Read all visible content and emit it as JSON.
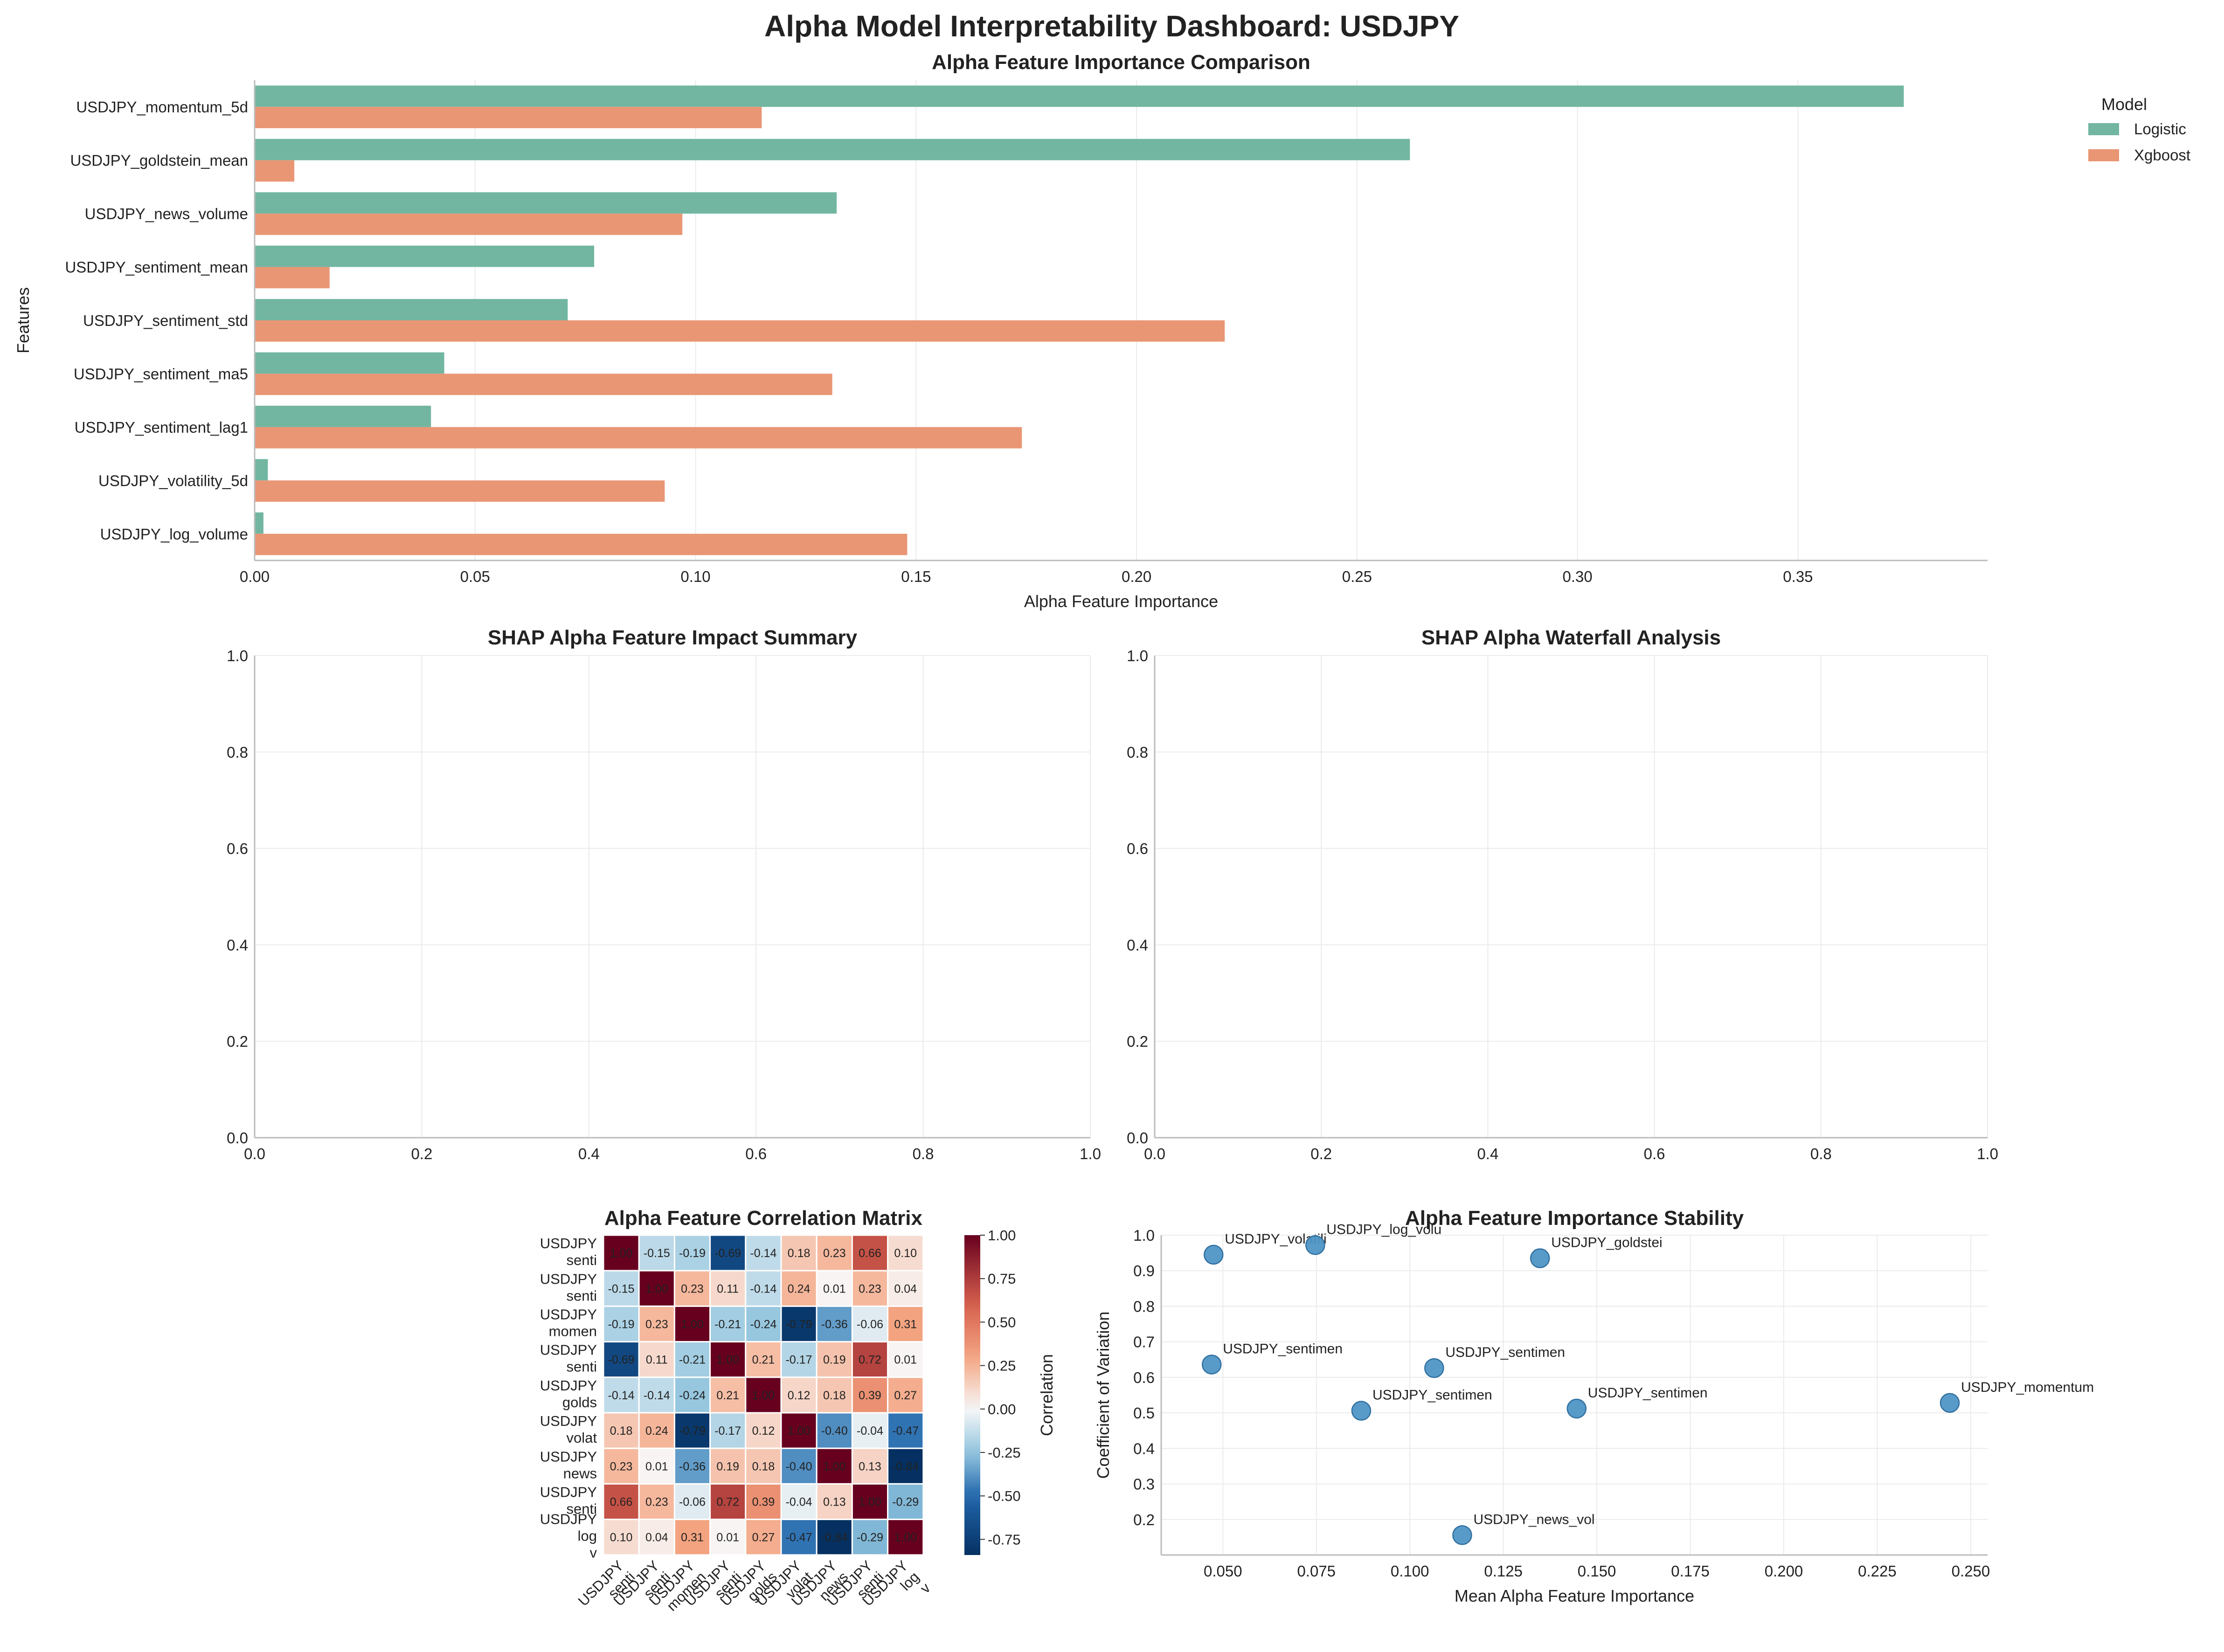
{
  "dashboard": {
    "title": "Alpha Model Interpretability Dashboard: USDJPY"
  },
  "chart_data": [
    {
      "id": "importance",
      "type": "bar",
      "orientation": "horizontal",
      "title": "Alpha Feature Importance Comparison",
      "xlabel": "Alpha Feature Importance",
      "ylabel": "Features",
      "xlim": [
        0,
        0.393
      ],
      "xticks": [
        "0.00",
        "0.05",
        "0.10",
        "0.15",
        "0.20",
        "0.25",
        "0.30",
        "0.35"
      ],
      "grid": "vertical",
      "legend": {
        "title": "Model",
        "position": "right-outside"
      },
      "categories": [
        "USDJPY_momentum_5d",
        "USDJPY_goldstein_mean",
        "USDJPY_news_volume",
        "USDJPY_sentiment_mean",
        "USDJPY_sentiment_std",
        "USDJPY_sentiment_ma5",
        "USDJPY_sentiment_lag1",
        "USDJPY_volatility_5d",
        "USDJPY_log_volume"
      ],
      "series": [
        {
          "name": "Logistic",
          "color": "#72b6a1",
          "values": [
            0.374,
            0.262,
            0.132,
            0.077,
            0.071,
            0.043,
            0.04,
            0.003,
            0.002
          ]
        },
        {
          "name": "Xgboost",
          "color": "#e99675",
          "values": [
            0.115,
            0.009,
            0.097,
            0.017,
            0.22,
            0.131,
            0.174,
            0.093,
            0.148
          ]
        }
      ]
    },
    {
      "id": "shap_summary",
      "type": "scatter",
      "title": "SHAP Alpha Feature Impact Summary",
      "xlim": [
        0,
        1
      ],
      "ylim": [
        0,
        1
      ],
      "xticks": [
        "0.0",
        "0.2",
        "0.4",
        "0.6",
        "0.8",
        "1.0"
      ],
      "yticks": [
        "0.0",
        "0.2",
        "0.4",
        "0.6",
        "0.8",
        "1.0"
      ],
      "grid": true,
      "points": []
    },
    {
      "id": "shap_waterfall",
      "type": "bar",
      "title": "SHAP Alpha Waterfall Analysis",
      "xlim": [
        0,
        1
      ],
      "ylim": [
        0,
        1
      ],
      "xticks": [
        "0.0",
        "0.2",
        "0.4",
        "0.6",
        "0.8",
        "1.0"
      ],
      "yticks": [
        "0.0",
        "0.2",
        "0.4",
        "0.6",
        "0.8",
        "1.0"
      ],
      "grid": true,
      "values": []
    },
    {
      "id": "correlation",
      "type": "heatmap",
      "title": "Alpha Feature Correlation Matrix",
      "colorbar_label": "Correlation",
      "colorbar_range": [
        -0.84,
        1.0
      ],
      "colorbar_ticks": [
        "1.00",
        "0.75",
        "0.50",
        "0.25",
        "0.00",
        "-0.25",
        "-0.50",
        "-0.75"
      ],
      "colormap": "RdBu_r",
      "row_labels": [
        [
          "USDJPY",
          "senti"
        ],
        [
          "USDJPY",
          "senti"
        ],
        [
          "USDJPY",
          "momen"
        ],
        [
          "USDJPY",
          "senti"
        ],
        [
          "USDJPY",
          "golds"
        ],
        [
          "USDJPY",
          "volat"
        ],
        [
          "USDJPY",
          "news"
        ],
        [
          "USDJPY",
          "senti"
        ],
        [
          "USDJPY",
          "log",
          "v"
        ]
      ],
      "col_labels": [
        [
          "USDJPY",
          "senti"
        ],
        [
          "USDJPY",
          "senti"
        ],
        [
          "USDJPY",
          "momen"
        ],
        [
          "USDJPY",
          "senti"
        ],
        [
          "USDJPY",
          "golds"
        ],
        [
          "USDJPY",
          "volat"
        ],
        [
          "USDJPY",
          "news"
        ],
        [
          "USDJPY",
          "senti"
        ],
        [
          "USDJPY",
          "log",
          "v"
        ]
      ],
      "values": [
        [
          1.0,
          -0.15,
          -0.19,
          -0.69,
          -0.14,
          0.18,
          0.23,
          0.66,
          0.1
        ],
        [
          -0.15,
          1.0,
          0.23,
          0.11,
          -0.14,
          0.24,
          0.01,
          0.23,
          0.04
        ],
        [
          -0.19,
          0.23,
          1.0,
          -0.21,
          -0.24,
          -0.79,
          -0.36,
          -0.06,
          0.31
        ],
        [
          -0.69,
          0.11,
          -0.21,
          1.0,
          0.21,
          -0.17,
          0.19,
          0.72,
          0.01
        ],
        [
          -0.14,
          -0.14,
          -0.24,
          0.21,
          1.0,
          0.12,
          0.18,
          0.39,
          0.27
        ],
        [
          0.18,
          0.24,
          -0.79,
          -0.17,
          0.12,
          1.0,
          -0.4,
          -0.04,
          -0.47
        ],
        [
          0.23,
          0.01,
          -0.36,
          0.19,
          0.18,
          -0.4,
          1.0,
          0.13,
          -0.84
        ],
        [
          0.66,
          0.23,
          -0.06,
          0.72,
          0.39,
          -0.04,
          0.13,
          1.0,
          -0.29
        ],
        [
          0.1,
          0.04,
          0.31,
          0.01,
          0.27,
          -0.47,
          -0.84,
          -0.29,
          1.0
        ]
      ]
    },
    {
      "id": "stability",
      "type": "scatter",
      "title": "Alpha Feature Importance Stability",
      "xlabel": "Mean Alpha Feature Importance",
      "ylabel": "Coefficient of Variation",
      "xlim": [
        0.0335,
        0.2545
      ],
      "ylim": [
        0.1,
        1.0
      ],
      "xticks": [
        0.05,
        0.075,
        0.1,
        0.125,
        0.15,
        0.175,
        0.2,
        0.225,
        0.25
      ],
      "xtick_labels": [
        "0.050",
        "0.075",
        "0.100",
        "0.125",
        "0.150",
        "0.175",
        "0.200",
        "0.225",
        "0.250"
      ],
      "yticks": [
        0.2,
        0.3,
        0.4,
        0.5,
        0.6,
        0.7,
        0.8,
        0.9,
        1.0
      ],
      "ytick_labels": [
        "0.2",
        "0.3",
        "0.4",
        "0.5",
        "0.6",
        "0.7",
        "0.8",
        "0.9",
        "1.0"
      ],
      "grid": true,
      "color": "#4f96c6",
      "points": [
        {
          "label": "USDJPY_volatili",
          "x": 0.0475,
          "y": 0.945
        },
        {
          "label": "USDJPY_log_volu",
          "x": 0.0747,
          "y": 0.972
        },
        {
          "label": "USDJPY_goldstei",
          "x": 0.1348,
          "y": 0.935
        },
        {
          "label": "USDJPY_sentimen",
          "x": 0.047,
          "y": 0.636
        },
        {
          "label": "USDJPY_sentimen",
          "x": 0.1065,
          "y": 0.626
        },
        {
          "label": "USDJPY_sentimen",
          "x": 0.087,
          "y": 0.506
        },
        {
          "label": "USDJPY_sentimen",
          "x": 0.1446,
          "y": 0.512
        },
        {
          "label": "USDJPY_momentum",
          "x": 0.2444,
          "y": 0.528
        },
        {
          "label": "USDJPY_news_vol",
          "x": 0.114,
          "y": 0.156
        }
      ]
    }
  ]
}
